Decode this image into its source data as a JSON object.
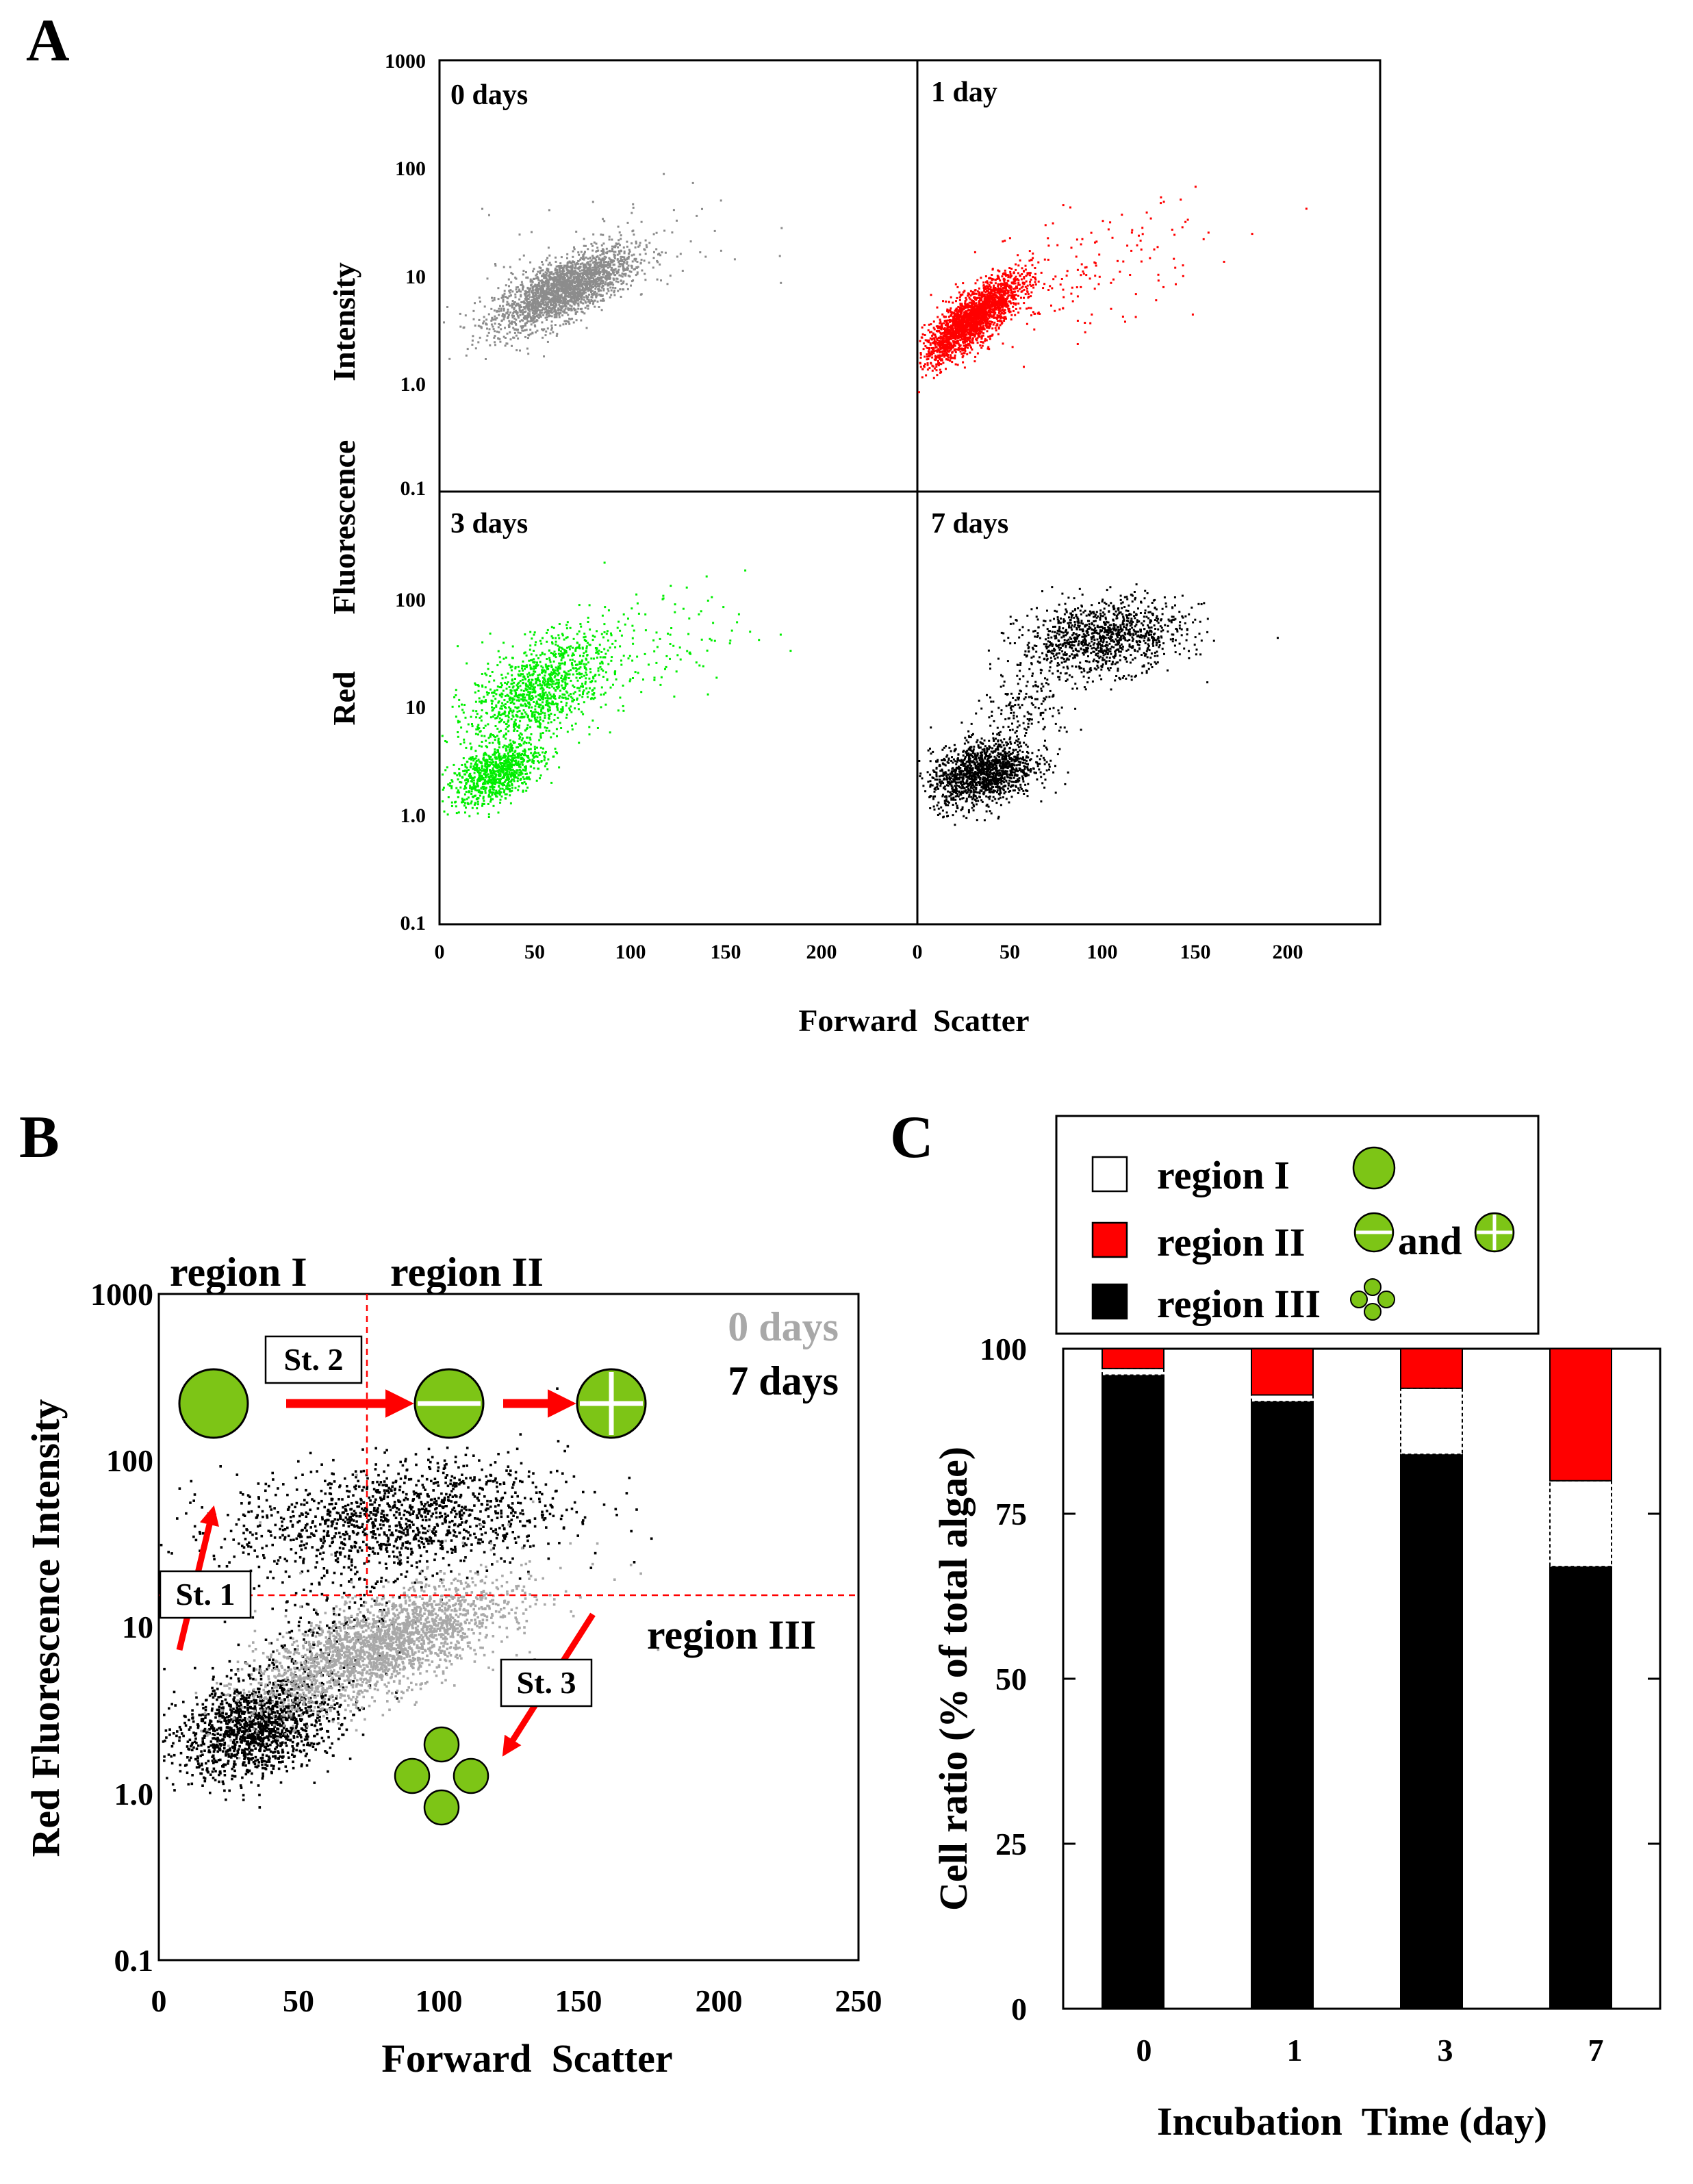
{
  "panel_labels": {
    "a": "A",
    "b": "B",
    "c": "C"
  },
  "colors": {
    "gray": "#8c8c8c",
    "red": "#ff0000",
    "green": "#00ee00",
    "black": "#000000",
    "cell": "#7dc516",
    "light_gray": "#a8a8a8"
  },
  "chart_data": [
    {
      "id": "A",
      "type": "scatter",
      "title": "",
      "xlabel": "Forward  Scatter",
      "ylabel_words": [
        "Red",
        "Fluorescence",
        "Intensity"
      ],
      "xlim": [
        0,
        250
      ],
      "ylim": [
        0.1,
        1000
      ],
      "yscale": "log",
      "xticks": [
        "0",
        "50",
        "100",
        "150",
        "200"
      ],
      "yticks": [
        "1000",
        "100",
        "10",
        "1.0",
        "0.1"
      ],
      "subplots": [
        {
          "label": "0 days",
          "color": "#8c8c8c",
          "clusters": [
            {
              "mx": 65,
              "my": 7.5,
              "sx": 18,
              "sy": 0.19,
              "rho": 0.7,
              "n": 2300
            },
            {
              "mx": 95,
              "my": 16,
              "sx": 35,
              "sy": 0.3,
              "rho": 0.3,
              "n": 70
            }
          ]
        },
        {
          "label": "1 day",
          "color": "#ff0000",
          "clusters": [
            {
              "mx": 30,
              "my": 4,
              "sx": 13,
              "sy": 0.2,
              "rho": 0.8,
              "n": 2200
            },
            {
              "mx": 85,
              "my": 10,
              "sx": 35,
              "sy": 0.3,
              "rho": 0.5,
              "n": 180
            }
          ]
        },
        {
          "label": "3 days",
          "color": "#00ee00",
          "clusters": [
            {
              "mx": 30,
              "my": 2.5,
              "sx": 12,
              "sy": 0.15,
              "rho": 0.5,
              "n": 900
            },
            {
              "mx": 52,
              "my": 15,
              "sx": 18,
              "sy": 0.25,
              "rho": 0.5,
              "n": 1100
            },
            {
              "mx": 100,
              "my": 30,
              "sx": 30,
              "sy": 0.3,
              "rho": 0.4,
              "n": 150
            }
          ]
        },
        {
          "label": "7 days",
          "color": "#000000",
          "clusters": [
            {
              "mx": 35,
              "my": 2.5,
              "sx": 14,
              "sy": 0.15,
              "rho": 0.3,
              "n": 1400
            },
            {
              "mx": 100,
              "my": 45,
              "sx": 22,
              "sy": 0.17,
              "rho": 0.2,
              "n": 1100
            },
            {
              "mx": 60,
              "my": 10,
              "sx": 15,
              "sy": 0.25,
              "rho": 0.5,
              "n": 200
            }
          ]
        }
      ]
    },
    {
      "id": "B",
      "type": "scatter",
      "title": "",
      "xlabel": "Forward  Scatter",
      "ylabel": "Red Fluorescence Intensity",
      "xlim": [
        0,
        250
      ],
      "ylim": [
        0.1,
        1000
      ],
      "yscale": "log",
      "xticks": [
        "0",
        "50",
        "100",
        "150",
        "200",
        "250"
      ],
      "yticks": [
        "1000",
        "100",
        "10",
        "1.0",
        "0.1"
      ],
      "legend": [
        {
          "label": "0 days",
          "color": "#a8a8a8"
        },
        {
          "label": "7 days",
          "color": "#000000"
        }
      ],
      "threshold_x": 73,
      "threshold_y": 15,
      "regions": [
        "region I",
        "region II",
        "region III"
      ],
      "stages": [
        "St. 1",
        "St. 2",
        "St. 3"
      ],
      "series": [
        {
          "name": "7 days",
          "color": "#000000",
          "clusters": [
            {
              "mx": 35,
              "my": 2.5,
              "sx": 14,
              "sy": 0.15,
              "rho": 0.3,
              "n": 1400
            },
            {
              "mx": 85,
              "my": 45,
              "sx": 30,
              "sy": 0.17,
              "rho": 0.2,
              "n": 1300
            },
            {
              "mx": 60,
              "my": 10,
              "sx": 15,
              "sy": 0.25,
              "rho": 0.5,
              "n": 200
            }
          ]
        },
        {
          "name": "0 days",
          "color": "#a8a8a8",
          "clusters": [
            {
              "mx": 78,
              "my": 7.5,
              "sx": 22,
              "sy": 0.19,
              "rho": 0.7,
              "n": 2300
            },
            {
              "mx": 110,
              "my": 16,
              "sx": 35,
              "sy": 0.3,
              "rho": 0.3,
              "n": 70
            }
          ]
        }
      ]
    },
    {
      "id": "C",
      "type": "bar",
      "stacked": true,
      "title": "",
      "xlabel": "Incubation  Time (day)",
      "ylabel": "Cell ratio (% of total algae)",
      "ylim": [
        0,
        100
      ],
      "yticks": [
        "0",
        "25",
        "50",
        "75",
        "100"
      ],
      "categories": [
        "0",
        "1",
        "3",
        "7"
      ],
      "series": [
        {
          "name": "region III",
          "color": "#000000",
          "values": [
            96,
            92,
            84,
            67
          ]
        },
        {
          "name": "region I",
          "color": "#ffffff",
          "values": [
            1,
            1,
            10,
            13
          ]
        },
        {
          "name": "region II",
          "color": "#ff0000",
          "values": [
            3,
            7,
            6,
            20
          ]
        }
      ],
      "legend": [
        {
          "label": "region I",
          "color": "#ffffff",
          "icon": "whole-cell"
        },
        {
          "label": "region II",
          "color": "#ff0000",
          "icon": "divided-cells",
          "joiner": "and"
        },
        {
          "label": "region III",
          "color": "#000000",
          "icon": "four-daughter-cells"
        }
      ]
    }
  ]
}
